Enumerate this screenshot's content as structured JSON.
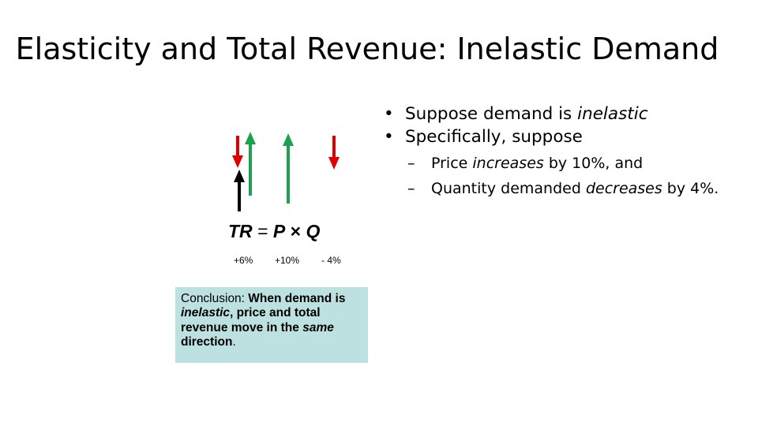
{
  "slide": {
    "title": "Elasticity and Total Revenue: Inelastic Demand"
  },
  "diagram": {
    "arrows": [
      {
        "name": "red-down-arrow-tr",
        "direction": "down",
        "color": "#e00000"
      },
      {
        "name": "black-up-arrow-tr",
        "direction": "up",
        "color": "#000000"
      },
      {
        "name": "green-up-arrow-tr",
        "direction": "up",
        "color": "#1aa34a"
      },
      {
        "name": "green-up-arrow-price",
        "direction": "up",
        "color": "#1aa34a"
      },
      {
        "name": "red-down-arrow-quantity",
        "direction": "down",
        "color": "#e00000"
      }
    ],
    "formula": {
      "tr": "TR",
      "equals": "=",
      "p": "P",
      "times": "×",
      "q": "Q"
    },
    "changes": {
      "tr": "+6%",
      "p": "+10%",
      "q": "- 4%"
    }
  },
  "conclusion": {
    "t1": "Conclusion: ",
    "t2": "When demand is ",
    "t3": "inelastic",
    "t4": ", price and total revenue move in the ",
    "t5": "same",
    "t6": " direction",
    "t7": "."
  },
  "bullets": {
    "b1_a": "Suppose demand is ",
    "b1_b": "inelastic",
    "b2": "Specifically, suppose",
    "s1_a": "Price ",
    "s1_b": "increases",
    "s1_c": " by 10%, and",
    "s2_a": "Quantity demanded ",
    "s2_b": "decreases",
    "s2_c": " by 4%.",
    "bullet_glyph": "•",
    "dash_glyph": "–"
  }
}
